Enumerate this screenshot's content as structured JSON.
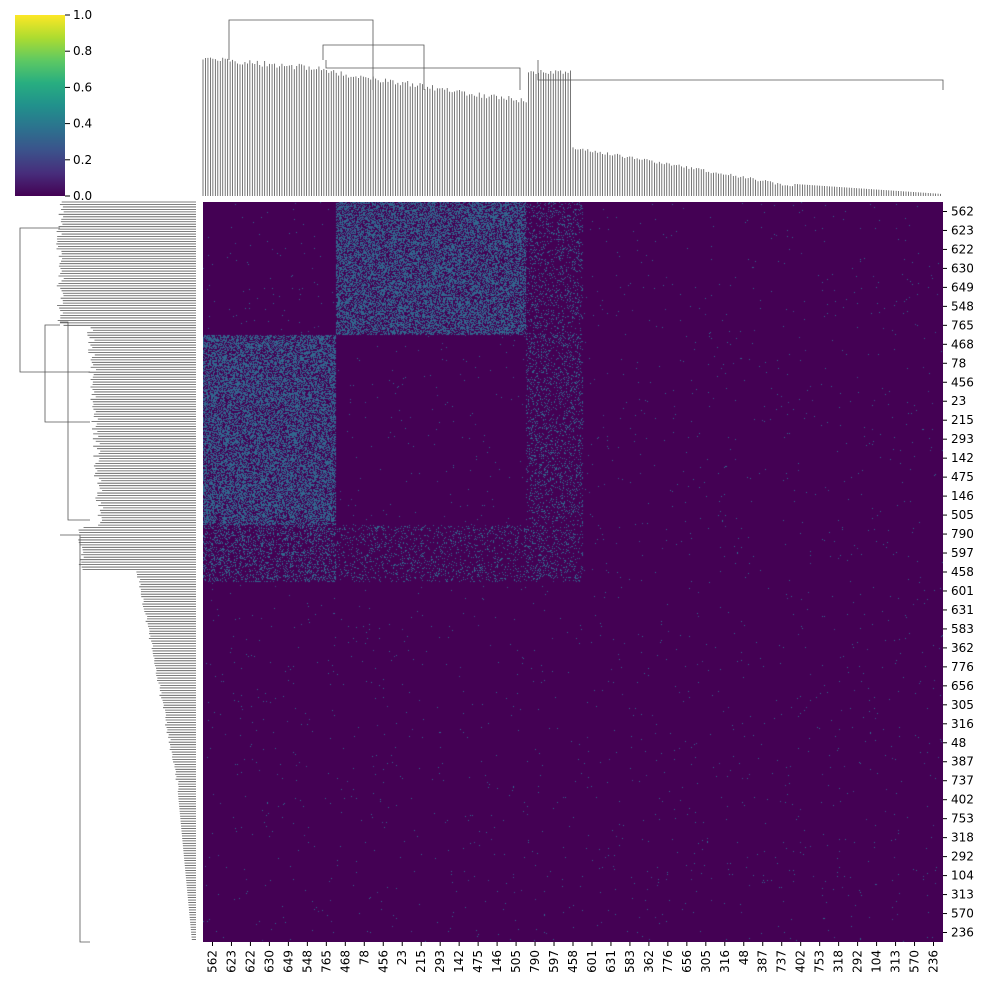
{
  "chart_data": {
    "type": "heatmap",
    "variant": "clustermap",
    "colormap": "viridis",
    "colors": {
      "low": "#440154",
      "mid": "#31688e",
      "high": "#fde725",
      "dendrogram": "#555555",
      "dendrogram_fill": "#808080"
    },
    "colorbar": {
      "min": 0.0,
      "max": 1.0,
      "ticks": [
        "0.0",
        "0.2",
        "0.4",
        "0.6",
        "0.8",
        "1.0"
      ],
      "placement": "top-left"
    },
    "row_tick_labels": [
      "562",
      "623",
      "622",
      "630",
      "649",
      "548",
      "765",
      "468",
      "78",
      "456",
      "23",
      "215",
      "293",
      "142",
      "475",
      "146",
      "505",
      "790",
      "597",
      "458",
      "601",
      "631",
      "583",
      "362",
      "776",
      "656",
      "305",
      "316",
      "48",
      "387",
      "737",
      "402",
      "753",
      "318",
      "292",
      "104",
      "313",
      "570",
      "236"
    ],
    "col_tick_labels": [
      "562",
      "623",
      "622",
      "630",
      "649",
      "548",
      "765",
      "468",
      "78",
      "456",
      "23",
      "215",
      "293",
      "142",
      "475",
      "146",
      "505",
      "790",
      "597",
      "458",
      "601",
      "631",
      "583",
      "362",
      "776",
      "656",
      "305",
      "316",
      "48",
      "387",
      "737",
      "402",
      "753",
      "318",
      "292",
      "104",
      "313",
      "570",
      "236"
    ],
    "matrix_size": 800,
    "values_present": [
      0.0,
      0.35
    ],
    "blocks": [
      {
        "rows": [
          "562",
          "765"
        ],
        "cols": [
          "468",
          "505"
        ],
        "value": 0.35,
        "density": 0.55
      },
      {
        "rows": [
          "468",
          "505"
        ],
        "cols": [
          "562",
          "765"
        ],
        "value": 0.35,
        "density": 0.55
      },
      {
        "rows": [
          "790",
          "458"
        ],
        "cols": [
          "562",
          "765"
        ],
        "value": 0.35,
        "density": 0.25
      },
      {
        "rows": [
          "562",
          "458"
        ],
        "cols": [
          "790",
          "458"
        ],
        "value": 0.35,
        "density": 0.15
      },
      {
        "rows": [
          "790",
          "458"
        ],
        "cols": [
          "468",
          "505"
        ],
        "value": 0.35,
        "density": 0.12
      }
    ],
    "background_value": 0.0,
    "sparse_noise_density": 0.004,
    "dendrograms": [
      "top",
      "left"
    ],
    "grid": false,
    "legend": "none"
  }
}
